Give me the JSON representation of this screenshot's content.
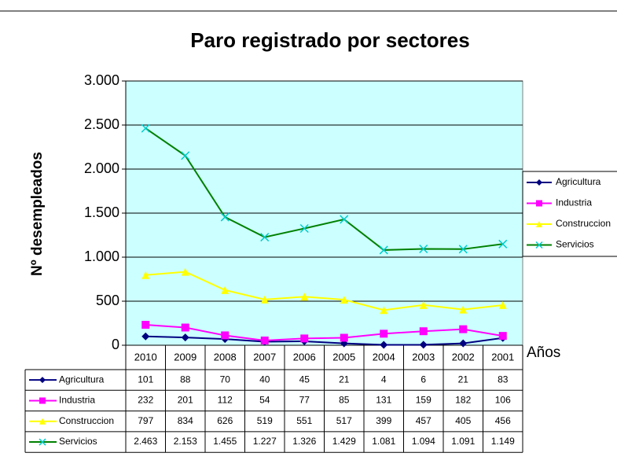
{
  "chart_data": {
    "type": "line",
    "title": "Paro registrado por sectores",
    "y_label": "Nº desempleados",
    "x_label": "Años",
    "categories": [
      "2010",
      "2009",
      "2008",
      "2007",
      "2006",
      "2005",
      "2004",
      "2003",
      "2002",
      "2001"
    ],
    "series": [
      {
        "name": "Agricultura",
        "color": "#000080",
        "marker": "diamond",
        "values": [
          101,
          88,
          70,
          40,
          45,
          21,
          4,
          6,
          21,
          83
        ]
      },
      {
        "name": "Industria",
        "color": "#ff00ff",
        "marker": "square",
        "values": [
          232,
          201,
          112,
          54,
          77,
          85,
          131,
          159,
          182,
          106
        ]
      },
      {
        "name": "Construccion",
        "color": "#ffff00",
        "marker": "triangle",
        "values": [
          797,
          834,
          626,
          519,
          551,
          517,
          399,
          457,
          405,
          456
        ]
      },
      {
        "name": "Servicios",
        "color": "#008000",
        "marker": "x",
        "marker_color": "#00cccc",
        "values": [
          2463,
          2153,
          1455,
          1227,
          1326,
          1429,
          1081,
          1094,
          1091,
          1149
        ],
        "value_labels": [
          "2.463",
          "2.153",
          "1.455",
          "1.227",
          "1.326",
          "1.429",
          "1.081",
          "1.094",
          "1.091",
          "1.149"
        ]
      }
    ],
    "ylim": [
      0,
      3000
    ],
    "yticks": [
      0,
      500,
      {
        "value": 1000,
        "label": "1.000"
      },
      {
        "value": 1500,
        "label": "1.500"
      },
      {
        "value": 2000,
        "label": "2.000"
      },
      {
        "value": 2500,
        "label": "2.500"
      },
      {
        "value": 3000,
        "label": "3.000"
      }
    ],
    "grid": true,
    "legend": "right",
    "plot_background": "#ccffff"
  }
}
